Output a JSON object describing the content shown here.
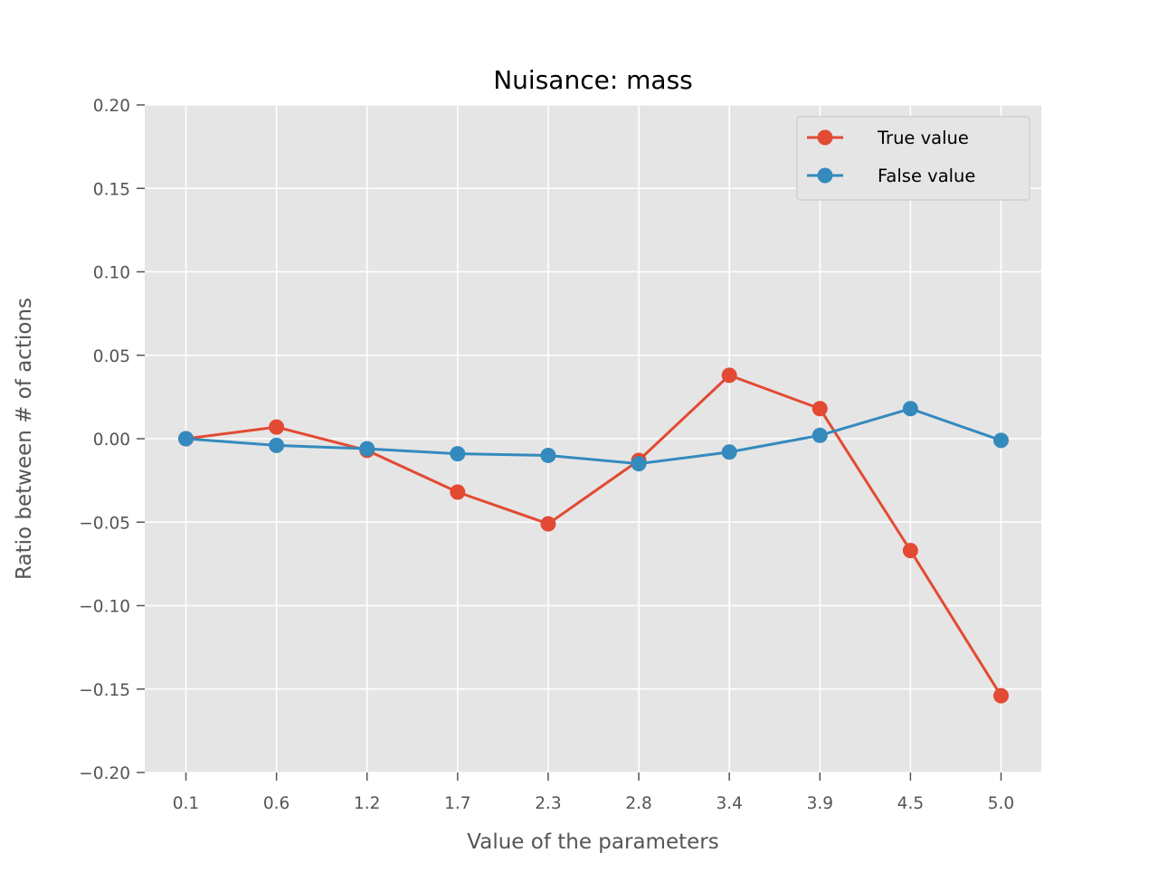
{
  "chart_data": {
    "type": "line",
    "title": "Nuisance: mass",
    "xlabel": "Value of the parameters",
    "ylabel": "Ratio between # of actions",
    "categories": [
      "0.1",
      "0.6",
      "1.2",
      "1.7",
      "2.3",
      "2.8",
      "3.4",
      "3.9",
      "4.5",
      "5.0"
    ],
    "ylim": [
      -0.2,
      0.2
    ],
    "yticks": [
      0.2,
      0.15,
      0.1,
      0.05,
      0.0,
      -0.05,
      -0.1,
      -0.15,
      -0.2
    ],
    "ytick_labels": [
      "0.20",
      "0.15",
      "0.10",
      "0.05",
      "0.00",
      "−0.05",
      "−0.10",
      "−0.15",
      "−0.20"
    ],
    "grid": true,
    "legend_position": "top-right",
    "series": [
      {
        "name": "True value",
        "color": "#E24A33",
        "values": [
          0.0,
          0.007,
          -0.007,
          -0.032,
          -0.051,
          -0.013,
          0.038,
          0.018,
          -0.067,
          -0.154
        ]
      },
      {
        "name": "False value",
        "color": "#348ABD",
        "values": [
          0.0,
          -0.004,
          -0.006,
          -0.009,
          -0.01,
          -0.015,
          -0.008,
          0.002,
          0.018,
          -0.001
        ]
      }
    ]
  },
  "colors": {
    "plot_background": "#E5E5E5",
    "grid": "#FFFFFF",
    "legend_background": "#E5E5E5",
    "legend_border": "#CCCCCC"
  }
}
